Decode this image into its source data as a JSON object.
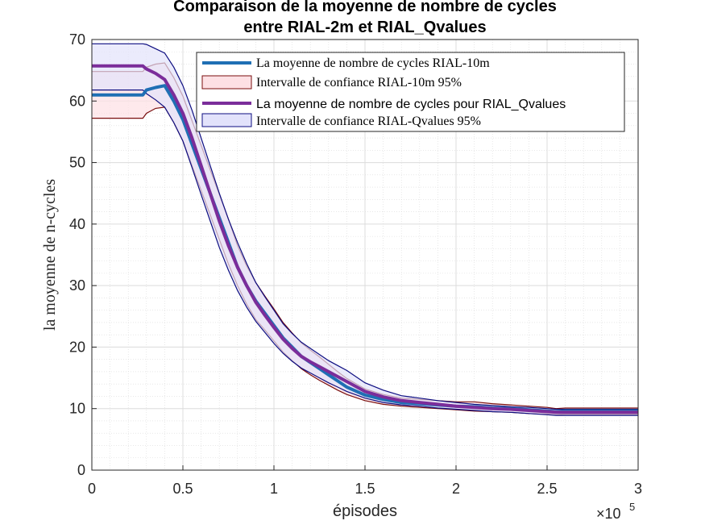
{
  "chart_data": {
    "type": "line",
    "title": [
      "Comparaison de la moyenne de nombre de cycles",
      "entre RIAL-2m et RIAL_Qvalues"
    ],
    "xlabel": "épisodes",
    "ylabel": "la moyenne de n-cycles",
    "x_exponent_base": "×10",
    "x_exponent_power": "5",
    "xlim": [
      0,
      300000
    ],
    "ylim": [
      0,
      70
    ],
    "xticks": [
      0,
      50000,
      100000,
      150000,
      200000,
      250000,
      300000
    ],
    "xtick_labels": [
      "0",
      "0.5",
      "1",
      "1.5",
      "2",
      "2.5",
      "3"
    ],
    "yticks": [
      0,
      10,
      20,
      30,
      40,
      50,
      60,
      70
    ],
    "ytick_labels": [
      "0",
      "10",
      "20",
      "30",
      "40",
      "50",
      "60",
      "70"
    ],
    "grid": true,
    "minor_grid": true,
    "legend_position": "top-right",
    "x": [
      0,
      28000,
      30000,
      35000,
      40000,
      45000,
      50000,
      55000,
      60000,
      65000,
      70000,
      75000,
      80000,
      85000,
      90000,
      95000,
      100000,
      105000,
      110000,
      115000,
      120000,
      125000,
      130000,
      135000,
      140000,
      150000,
      160000,
      170000,
      180000,
      190000,
      200000,
      210000,
      220000,
      230000,
      240000,
      250000,
      255000,
      260000,
      270000,
      280000,
      290000,
      300000
    ],
    "series": [
      {
        "name": "La moyenne de nombre de cycles RIAL-10m",
        "color": "#1f6fb4",
        "band_name": "Intervalle de confiance RIAL-10m 95%",
        "band_fill": "#fde0e4",
        "band_edge": "#7a0e0e",
        "mean": [
          61,
          61,
          61.8,
          62.2,
          62.5,
          60,
          57,
          53,
          49,
          45,
          41,
          37,
          33,
          30,
          27.5,
          25.5,
          23.5,
          21.5,
          20,
          18.5,
          17.5,
          16.5,
          15.5,
          14.5,
          13.5,
          12.2,
          11.5,
          11,
          10.8,
          10.6,
          10.4,
          10.3,
          10.1,
          10,
          9.8,
          9.6,
          9.5,
          9.6,
          9.6,
          9.6,
          9.6,
          9.6
        ],
        "lower": [
          57.2,
          57.2,
          58,
          58.8,
          59,
          56.5,
          53.5,
          49.5,
          45.5,
          41.5,
          37.5,
          33.5,
          30,
          27,
          24.5,
          22.8,
          21,
          19.2,
          17.8,
          16.5,
          15.5,
          14.6,
          13.8,
          13,
          12.3,
          11.3,
          10.7,
          10.4,
          10.2,
          10,
          9.8,
          9.6,
          9.5,
          9.4,
          9.2,
          9.1,
          9.0,
          9.1,
          9.1,
          9.1,
          9.1,
          9.1
        ],
        "upper": [
          64.8,
          64.8,
          65.5,
          66,
          66.2,
          63.8,
          60.8,
          56.8,
          52.8,
          48.8,
          44.8,
          40.8,
          36.5,
          33.2,
          30.5,
          28.3,
          26.2,
          24,
          22.3,
          20.7,
          19.5,
          18.4,
          17.2,
          16,
          14.9,
          13.2,
          12.3,
          11.7,
          11.5,
          11.3,
          11.1,
          11.1,
          10.8,
          10.6,
          10.4,
          10.2,
          10.0,
          10.1,
          10.1,
          10.1,
          10.1,
          10.1
        ]
      },
      {
        "name": "La moyenne de nombre de cycles pour RIAL_Qvalues",
        "color": "#7b2d9a",
        "band_name": "Intervalle de confiance RIAL-Qvalues 95%",
        "band_fill": "#e2e2fb",
        "band_edge": "#0d0d80",
        "mean": [
          65.7,
          65.7,
          65.2,
          64.5,
          63.5,
          61,
          58,
          54,
          49.5,
          45,
          40.5,
          36.5,
          33,
          30,
          27.3,
          25.2,
          23.2,
          21.3,
          19.8,
          18.5,
          17.6,
          16.8,
          16,
          15.2,
          14.4,
          12.8,
          11.9,
          11.3,
          11,
          10.7,
          10.4,
          10.2,
          10,
          9.9,
          9.7,
          9.5,
          9.4,
          9.4,
          9.4,
          9.4,
          9.4,
          9.4
        ],
        "lower": [
          61.8,
          61.8,
          61.2,
          60.2,
          59,
          56.5,
          53.5,
          49.2,
          44.8,
          40.5,
          36.2,
          32.5,
          29.2,
          26.5,
          24.2,
          22.4,
          20.6,
          19,
          17.7,
          16.6,
          15.8,
          15,
          14.2,
          13.5,
          12.8,
          11.7,
          11,
          10.6,
          10.4,
          10.1,
          9.9,
          9.7,
          9.5,
          9.4,
          9.2,
          9.0,
          8.9,
          8.9,
          8.9,
          8.9,
          8.9,
          8.9
        ],
        "upper": [
          69.3,
          69.3,
          69.2,
          68.5,
          67.8,
          65.5,
          62.5,
          58.5,
          54,
          49.5,
          45,
          40.8,
          37,
          33.6,
          30.5,
          28.2,
          26,
          23.8,
          22.2,
          20.8,
          19.8,
          18.8,
          17.8,
          17,
          16.2,
          14.2,
          13,
          12.1,
          11.7,
          11.3,
          11,
          10.7,
          10.5,
          10.3,
          10.2,
          10.0,
          9.9,
          9.9,
          9.9,
          9.9,
          9.9,
          9.9
        ]
      }
    ]
  }
}
